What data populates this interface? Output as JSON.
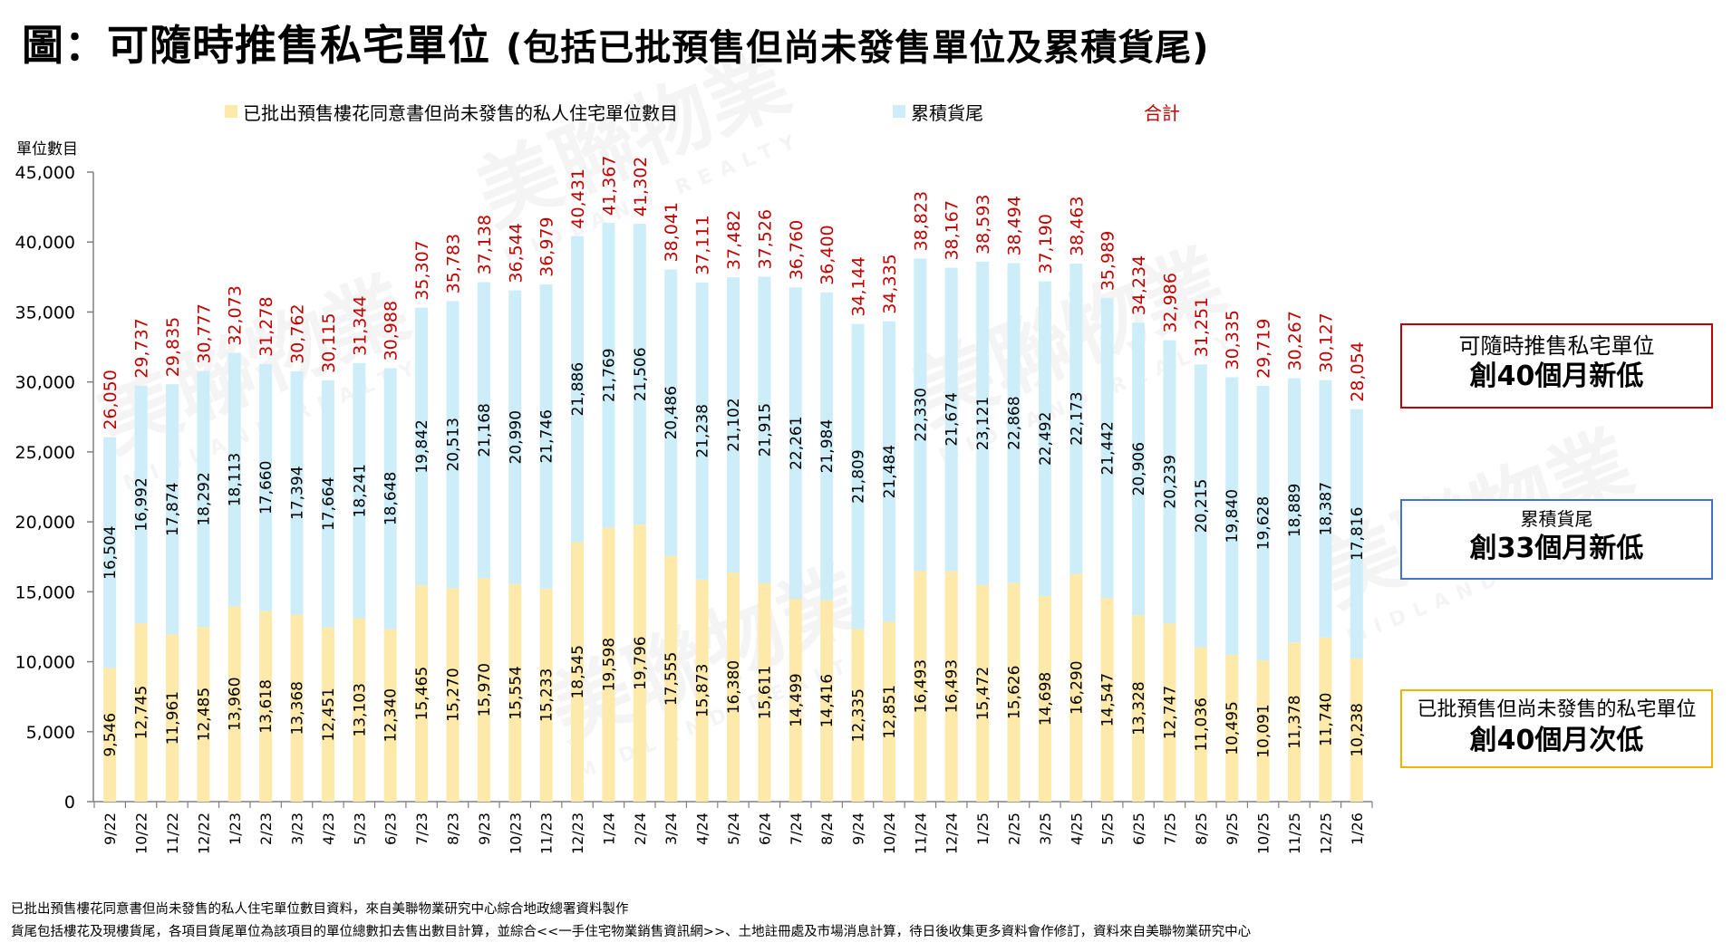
{
  "title": {
    "main": "圖：可隨時推售私宅單位",
    "sub": "(包括已批預售但尚未發售單位及累積貨尾)"
  },
  "watermark": {
    "cn": "美聯物業",
    "en": "MIDLAND REALTY"
  },
  "callouts": [
    {
      "line1": "可隨時推售私宅單位",
      "line2": "創40個月新低",
      "color": "#c00000"
    },
    {
      "line1": "累積貨尾",
      "line2": "創33個月新低",
      "color": "#4472c4"
    },
    {
      "line1": "已批預售但尚未發售的私宅單位",
      "line2": "創40個月次低",
      "color": "#f0b400"
    }
  ],
  "footnotes": [
    "已批出預售樓花同意書但尚未發售的私人住宅單位數目資料，來自美聯物業研究中心綜合地政總署資料製作",
    "貨尾包括樓花及現樓貨尾，各項目貨尾單位為該項目的單位總數扣去售出數目計算，並綜合<<一手住宅物業銷售資訊網>>、土地註冊處及市場消息計算，待日後收集更多資料會作修訂，資料來自美聯物業研究中心"
  ],
  "chart_data": {
    "type": "bar",
    "stacked": true,
    "title": "圖：可隨時推售私宅單位 (包括已批預售但尚未發售單位及累積貨尾)",
    "xlabel": "",
    "ylabel": "單位數目",
    "ylim": [
      0,
      45000
    ],
    "yticks": [
      0,
      5000,
      10000,
      15000,
      20000,
      25000,
      30000,
      35000,
      40000,
      45000
    ],
    "ytick_labels": [
      "0",
      "5,000",
      "10,000",
      "15,000",
      "20,000",
      "25,000",
      "30,000",
      "35,000",
      "40,000",
      "45,000"
    ],
    "grid": false,
    "legend_position": "top",
    "categories": [
      "9/22",
      "10/22",
      "11/22",
      "12/22",
      "1/23",
      "2/23",
      "3/23",
      "4/23",
      "5/23",
      "6/23",
      "7/23",
      "8/23",
      "9/23",
      "10/23",
      "11/23",
      "12/23",
      "1/24",
      "2/24",
      "3/24",
      "4/24",
      "5/24",
      "6/24",
      "7/24",
      "8/24",
      "9/24",
      "10/24",
      "11/24",
      "12/24",
      "1/25",
      "2/25",
      "3/25",
      "4/25",
      "5/25",
      "6/25",
      "7/25",
      "8/25",
      "9/25",
      "10/25",
      "11/25",
      "12/25",
      "1/26"
    ],
    "series": [
      {
        "name": "已批出預售樓花同意書但尚未發售的私人住宅單位數目",
        "color": "#fde9a9",
        "values": [
          9546,
          12745,
          11961,
          12485,
          13960,
          13618,
          13368,
          12451,
          13103,
          12340,
          15465,
          15270,
          15970,
          15554,
          15233,
          18545,
          19598,
          19796,
          17555,
          15873,
          16380,
          15611,
          14499,
          14416,
          12335,
          12851,
          16493,
          16493,
          15472,
          15626,
          14698,
          16290,
          14547,
          13328,
          12747,
          11036,
          10495,
          10091,
          11378,
          11740,
          10238
        ]
      },
      {
        "name": "累積貨尾",
        "color": "#cdeef9",
        "values": [
          16504,
          16992,
          17874,
          18292,
          18113,
          17660,
          17394,
          17664,
          18241,
          18648,
          19842,
          20513,
          21168,
          20990,
          21746,
          21886,
          21769,
          21506,
          20486,
          21238,
          21102,
          21915,
          22261,
          21984,
          21809,
          21484,
          22330,
          21674,
          23121,
          22868,
          22492,
          22173,
          21442,
          20906,
          20239,
          20215,
          19840,
          19628,
          18889,
          18387,
          17816
        ]
      }
    ],
    "totals": {
      "name": "合計",
      "color": "#c00000",
      "values": [
        26050,
        29737,
        29835,
        30777,
        32073,
        31278,
        30762,
        30115,
        31344,
        30988,
        35307,
        35783,
        37138,
        36544,
        36979,
        40431,
        41367,
        41302,
        38041,
        37111,
        37482,
        37526,
        36760,
        36400,
        34144,
        34335,
        38823,
        38167,
        38593,
        38494,
        37190,
        38463,
        35989,
        34234,
        32986,
        31251,
        30335,
        29719,
        30267,
        30127,
        28054
      ]
    }
  }
}
